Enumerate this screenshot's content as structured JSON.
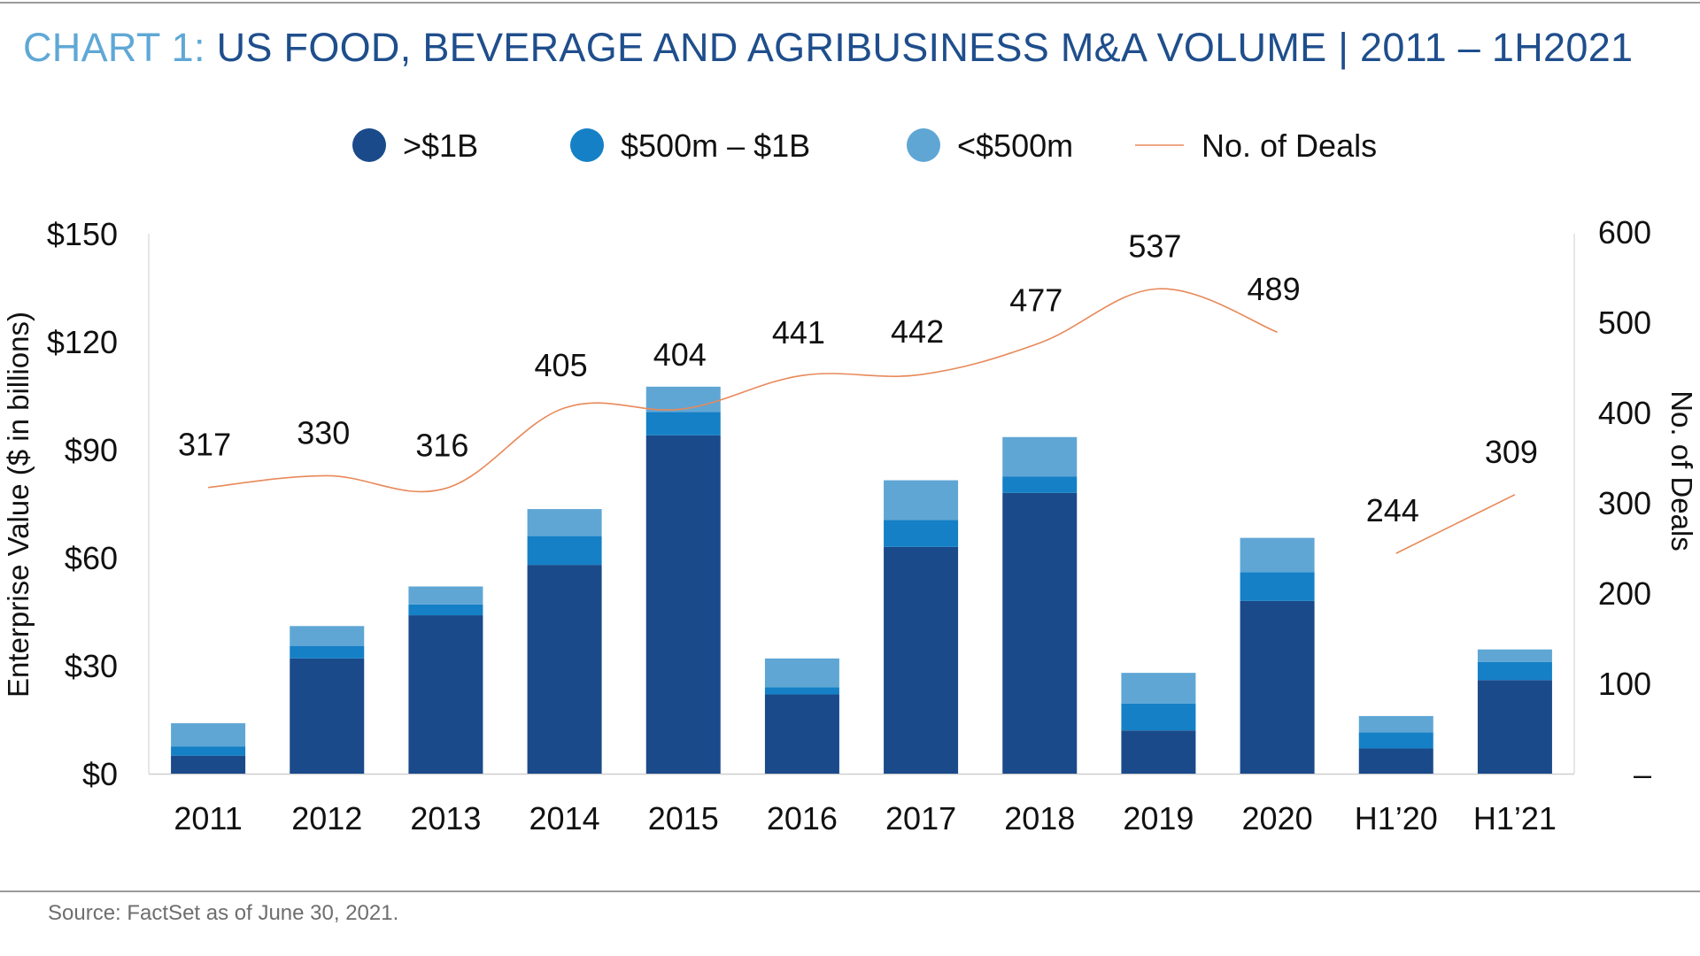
{
  "title": {
    "prefix": "CHART 1:",
    "main": "US FOOD, BEVERAGE AND AGRIBUSINESS M&A VOLUME | 2011 – 1H2021"
  },
  "source": "Source: FactSet as of June 30, 2021.",
  "colors": {
    "over_1b": "#1a4a8a",
    "mid": "#1580c6",
    "under_500m": "#5fa6d5",
    "line": "#e8895a",
    "axis": "#cfcfcf"
  },
  "chart_data": {
    "type": "bar",
    "stacked": true,
    "title": "US FOOD, BEVERAGE AND AGRIBUSINESS M&A VOLUME | 2011 – 1H2021",
    "categories": [
      "2011",
      "2012",
      "2013",
      "2014",
      "2015",
      "2016",
      "2017",
      "2018",
      "2019",
      "2020",
      "H1’20",
      "H1’21"
    ],
    "ylabel": "Enterprise Value ($ in billions)",
    "ylabel_right": "No. of Deals",
    "ylim": [
      0,
      150
    ],
    "ylim_right": [
      0,
      600
    ],
    "yticks": [
      "$0",
      "$30",
      "$60",
      "$90",
      "$120",
      "$150"
    ],
    "yticks_right": [
      "–",
      "100",
      "200",
      "300",
      "400",
      "500",
      "600"
    ],
    "legend_position": "top",
    "series": [
      {
        "name": ">$1B",
        "values": [
          5,
          32,
          44,
          58,
          94,
          22,
          63,
          78,
          12,
          48,
          7,
          26
        ]
      },
      {
        "name": "$500m – $1B",
        "values": [
          2.5,
          3.5,
          3,
          8,
          6.5,
          2,
          7.5,
          4.5,
          7.5,
          8,
          4.5,
          5
        ]
      },
      {
        "name": "<$500m",
        "values": [
          6.5,
          5.5,
          5,
          7.5,
          7,
          8,
          11,
          11,
          8.5,
          9.5,
          4.5,
          3.5
        ]
      }
    ],
    "line_series": {
      "name": "No. of Deals",
      "axis": "right",
      "values": [
        317,
        330,
        316,
        405,
        404,
        441,
        442,
        477,
        537,
        489,
        244,
        309
      ],
      "labels": [
        "317",
        "330",
        "316",
        "405",
        "404",
        "441",
        "442",
        "477",
        "537",
        "489",
        "244",
        "309"
      ],
      "segments": [
        [
          0,
          9
        ],
        [
          10,
          11
        ]
      ]
    }
  }
}
